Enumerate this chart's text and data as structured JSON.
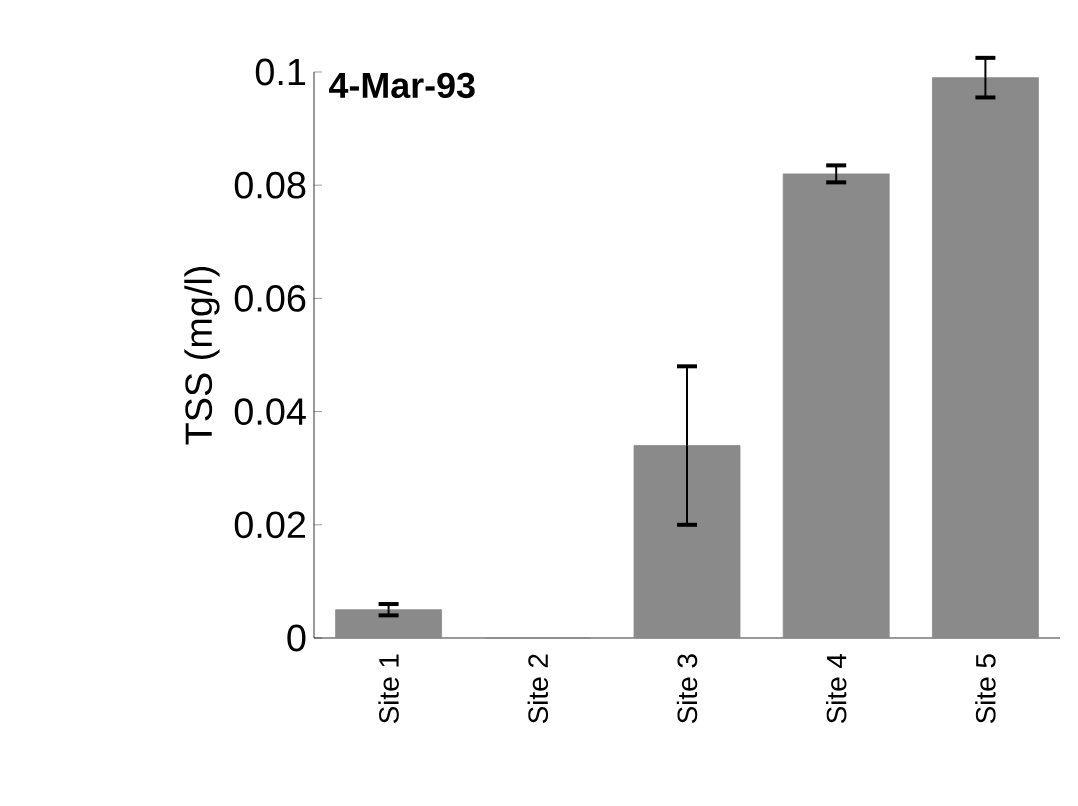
{
  "chart_data": {
    "type": "bar",
    "title": "4-Mar-93",
    "ylabel": "TSS (mg/l)",
    "categories": [
      "Site 1",
      "Site 2",
      "Site 3",
      "Site 4",
      "Site 5"
    ],
    "values": [
      0.005,
      0,
      0.034,
      0.082,
      0.099
    ],
    "errors": [
      0.001,
      null,
      0.014,
      0.0015,
      0.0035
    ],
    "color": "#8a8a8a",
    "ylim": [
      0,
      0.1
    ],
    "yticks": [
      0,
      0.02,
      0.04,
      0.06,
      0.08,
      0.1
    ]
  }
}
